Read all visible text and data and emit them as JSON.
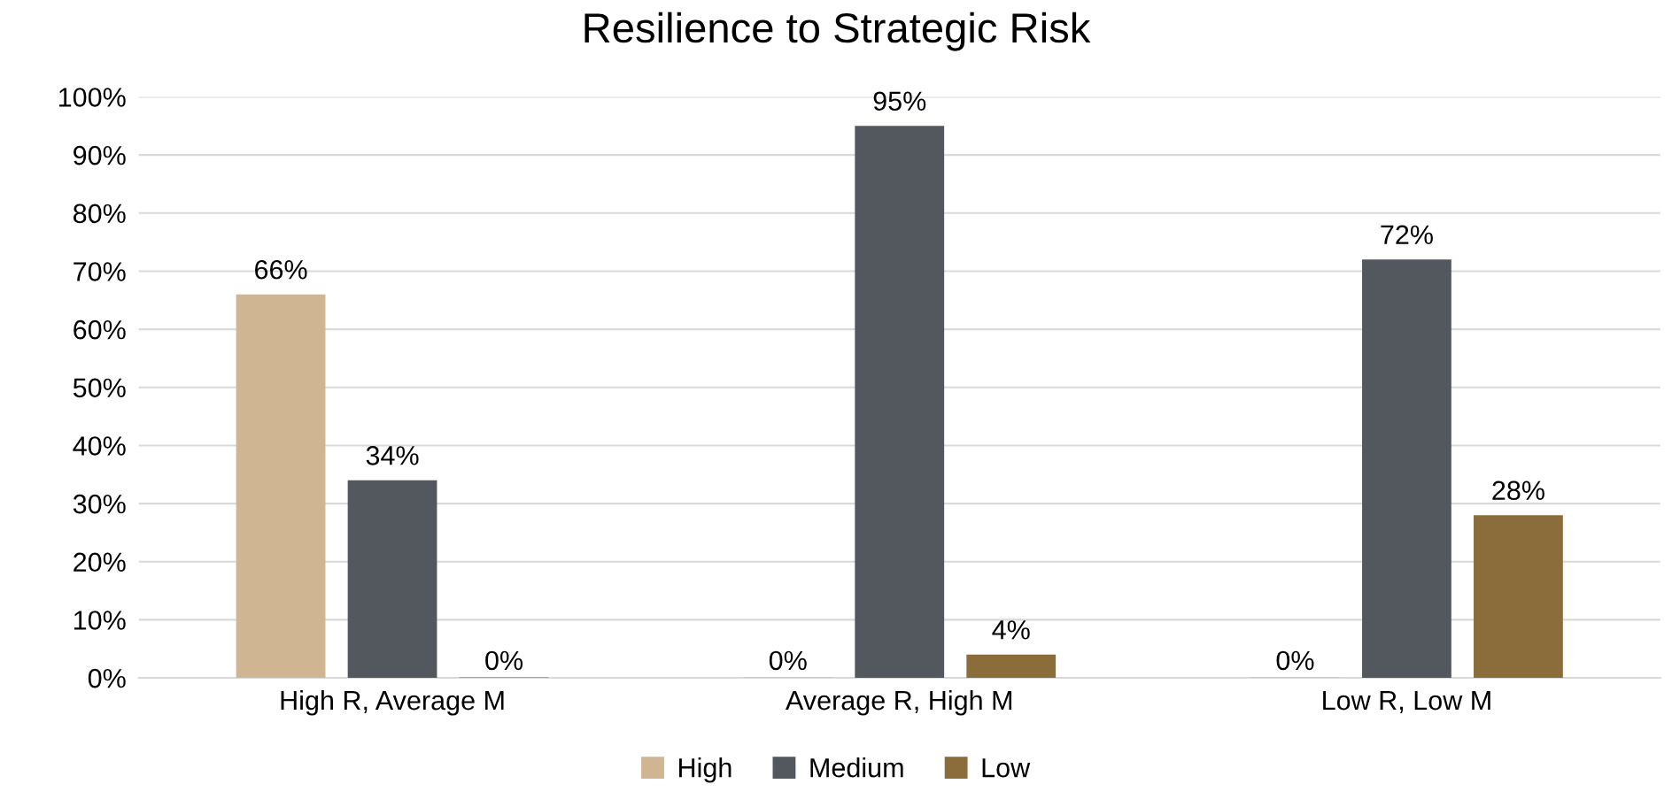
{
  "chart_data": {
    "type": "bar",
    "title": "Resilience to Strategic Risk",
    "categories": [
      "High R, Average M",
      "Average R, High M",
      "Low R, Low M"
    ],
    "series": [
      {
        "name": "High",
        "color": "#cfb591",
        "values": [
          66,
          0,
          0
        ],
        "value_labels": [
          "66%",
          "0%",
          "0%"
        ]
      },
      {
        "name": "Medium",
        "color": "#53575e",
        "values": [
          34,
          95,
          72
        ],
        "value_labels": [
          "34%",
          "95%",
          "72%"
        ]
      },
      {
        "name": "Low",
        "color": "#8b6d3c",
        "values": [
          0,
          4,
          28
        ],
        "value_labels": [
          "0%",
          "4%",
          "28%"
        ]
      }
    ],
    "ylim": [
      0,
      100
    ],
    "yticks": [
      {
        "value": 0,
        "label": "0%"
      },
      {
        "value": 10,
        "label": "10%"
      },
      {
        "value": 20,
        "label": "20%"
      },
      {
        "value": 30,
        "label": "30%"
      },
      {
        "value": 40,
        "label": "40%"
      },
      {
        "value": 50,
        "label": "50%"
      },
      {
        "value": 60,
        "label": "60%"
      },
      {
        "value": 70,
        "label": "70%"
      },
      {
        "value": 80,
        "label": "80%"
      },
      {
        "value": 90,
        "label": "90%"
      },
      {
        "value": 100,
        "label": "100%"
      }
    ],
    "grid": "y",
    "legend": "bottom"
  }
}
